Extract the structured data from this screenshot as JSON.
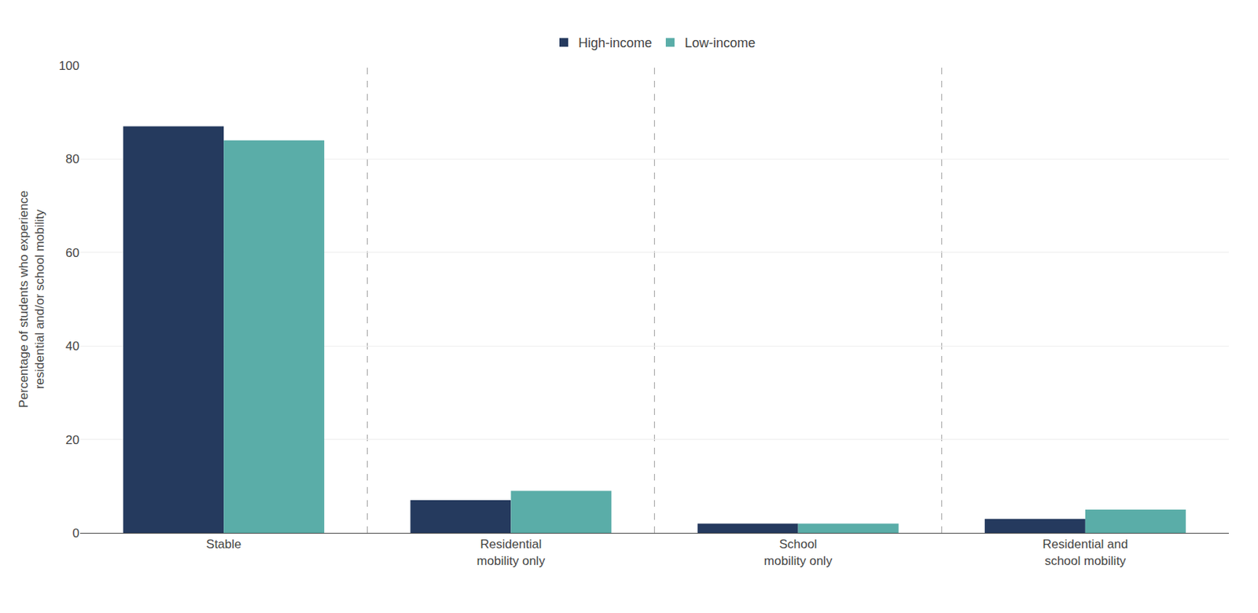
{
  "chart_data": {
    "type": "bar",
    "categories": [
      "Stable",
      "Residential\nmobility only",
      "School\nmobility only",
      "Residential and\nschool mobility"
    ],
    "series": [
      {
        "name": "High-income",
        "color": "#253A5E",
        "values": [
          87,
          7,
          2,
          3
        ]
      },
      {
        "name": "Low-income",
        "color": "#5AADA8",
        "values": [
          84,
          9,
          2,
          5
        ]
      }
    ],
    "ylabel": "Percentage of students who experience\nresidential and/or school mobility",
    "ylim": [
      0,
      100
    ],
    "yticks": [
      0,
      20,
      40,
      60,
      80,
      100
    ],
    "grid": true,
    "legend": "top"
  }
}
